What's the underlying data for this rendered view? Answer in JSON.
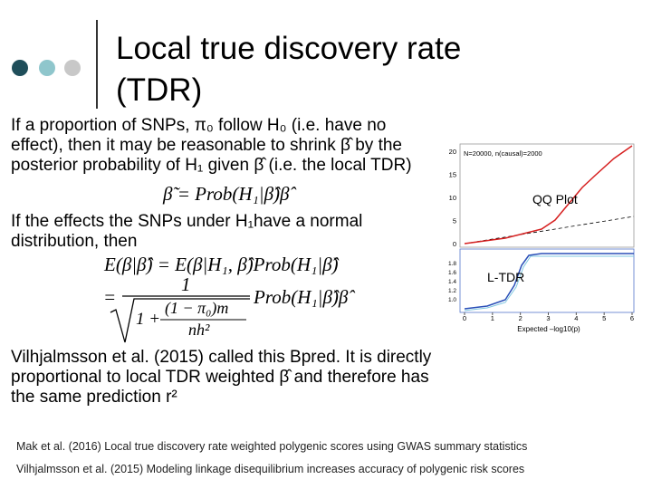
{
  "header": {
    "title_lines": [
      "Local true discovery rate",
      "(TDR)"
    ]
  },
  "bullets": [
    {
      "lines": [
        "If a proportion of SNPs, π₀ follow H₀ (i.e. have no",
        "effect), then it may be reasonable to shrink β̂ by the",
        "posterior probability of H₁ given β̂ (i.e. the local TDR)"
      ]
    },
    {
      "lines": [
        "If the effects the SNPs under H₁have a normal",
        "distribution, then"
      ]
    },
    {
      "lines": [
        "Vilhjalmsson et al. (2015) called this Bpred. It is directly",
        "proportional to local TDR weighted β̂ and therefore has",
        "the same prediction r²"
      ]
    }
  ],
  "equations": [
    "β̃ = Prob(H₁|β̂)β̂",
    "E(β|β̂) = E(β|H₁, β̂)Prob(H₁|β̂)"
  ],
  "fraction_equation": {
    "lhs": "=",
    "numerator": "1",
    "denominator_lead": "1 +",
    "inner_numerator": "(1 − π₀)m",
    "inner_denominator": "nh²",
    "rhs": "Prob(H₁|β̂)β̂"
  },
  "figure": {
    "note": "N=20000, n(causal)=2000",
    "upper_label": "QQ Plot",
    "lower_label": "L-TDR",
    "x_label": "Expected –log10(p)",
    "x_ticks": [
      "0",
      "1",
      "2",
      "3",
      "4",
      "5",
      "6"
    ],
    "upper_y_ticks": [
      "20",
      "15",
      "10",
      "5",
      "0"
    ],
    "lower_y_ticks": [
      "1.8",
      "1.6",
      "1.4",
      "1.2",
      "1.0"
    ]
  },
  "references": [
    "Mak et al. (2016) Local true discovery rate weighted polygenic scores using GWAS summary statistics",
    "Vilhjalmsson et al. (2015) Modeling linkage disequilibrium increases accuracy of polygenic risk scores"
  ]
}
